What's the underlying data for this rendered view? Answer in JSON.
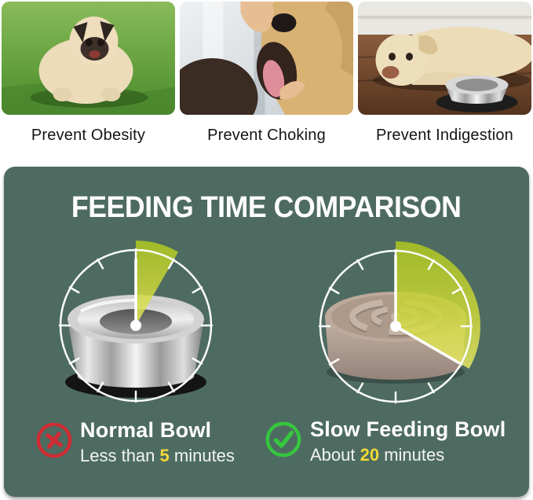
{
  "benefits": {
    "items": [
      {
        "caption": "Prevent Obesity",
        "photo": "obese-pug-on-grass"
      },
      {
        "caption": "Prevent Choking",
        "photo": "hand-checking-dog-mouth"
      },
      {
        "caption": "Prevent Indigestion",
        "photo": "dog-lying-beside-steel-bowl"
      }
    ]
  },
  "comparison": {
    "title": "FEEDING TIME COMPARISON",
    "clock_total_minutes": 60,
    "left": {
      "label": "Normal Bowl",
      "time_prefix": "Less than ",
      "time_value": "5",
      "time_suffix": " minutes",
      "minutes": 5,
      "verdict": "negative",
      "bowl": "stainless-steel-bowl"
    },
    "right": {
      "label": "Slow Feeding Bowl",
      "time_prefix": "About ",
      "time_value": "20",
      "time_suffix": " minutes",
      "minutes": 20,
      "verdict": "positive",
      "bowl": "slow-feeder-maze-bowl"
    },
    "colors": {
      "panel_green": "#4e6b61",
      "wedge_green": "#b5cc28",
      "highlight_yellow": "#f2d936",
      "cross_red": "#d23434",
      "check_green": "#35c73e"
    }
  }
}
